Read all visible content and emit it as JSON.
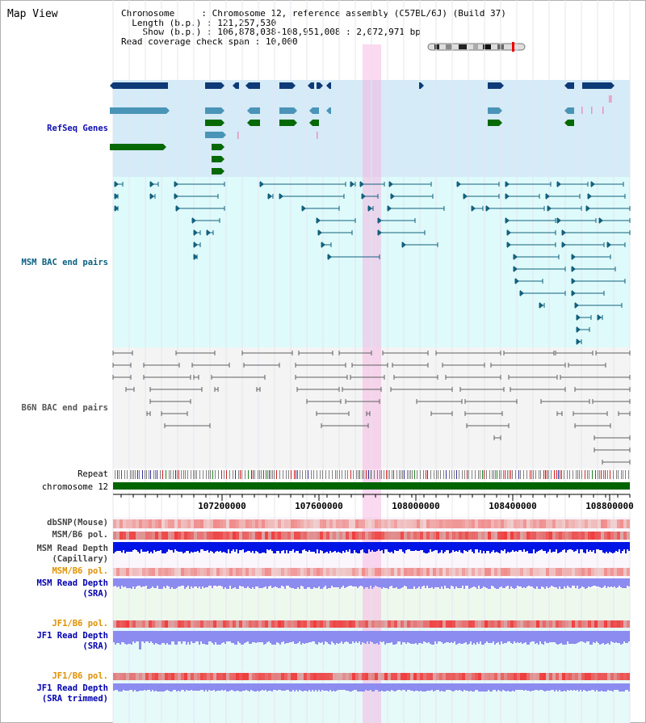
{
  "view_title": "Map View",
  "info": {
    "chromosome_key": "Chromosome    ",
    "chromosome": "Chromosome 12, reference assembly (C57BL/6J) (Build 37)",
    "length_key": "Length (b.p.)",
    "length": "121,257,530",
    "show_key": "Show (b.p.)",
    "show": "106,878,038-108,951,008 : 2,072,971 bp",
    "span_key": "Read coverage check span",
    "span": "10,000"
  },
  "labels": {
    "refseq": "RefSeq Genes",
    "msm_bac": "MSM BAC end pairs",
    "b6n_bac": "B6N BAC end pairs",
    "repeat": "Repeat",
    "chromosome": "chromosome 12",
    "dbsnp": "dbSNP(Mouse)",
    "msm_b6_pol_1": "MSM/B6 pol.",
    "msm_depth_cap_1": "MSM Read Depth",
    "msm_depth_cap_2": "(Capillary)",
    "msm_b6_pol_2": "MSM/B6 pol.",
    "msm_depth_sra_1": "MSM Read Depth",
    "msm_depth_sra_2": "(SRA)",
    "jf1_pol_1": "JF1/B6 pol.",
    "jf1_depth_sra_1": "JF1 Read Depth",
    "jf1_depth_sra_2": "(SRA)",
    "jf1_pol_2": "JF1/B6 pol.",
    "jf1_depth_trim_1": "JF1 Read Depth",
    "jf1_depth_trim_2": "(SRA trimmed)"
  },
  "ruler": {
    "ticks": [
      "107200000",
      "107600000",
      "108000000",
      "108400000",
      "108800000"
    ]
  },
  "colors": {
    "refseq_bg": "#d5ecf8",
    "msm_bg": "#dffafa",
    "b6n_bg": "#f4f4f4",
    "gene_dark": "#0f3a78",
    "gene_mid": "#4a94b8",
    "gene_green": "#056a05",
    "pink_mark": "#f090c0",
    "msm_pair": "#12607e",
    "b6n_pair": "#606060",
    "chromosome": "#006400",
    "highlight": "#f6aade",
    "depth_blue": "#0014e6",
    "depth_sra": "#8c8cf0",
    "pol_red": "#f02828"
  }
}
